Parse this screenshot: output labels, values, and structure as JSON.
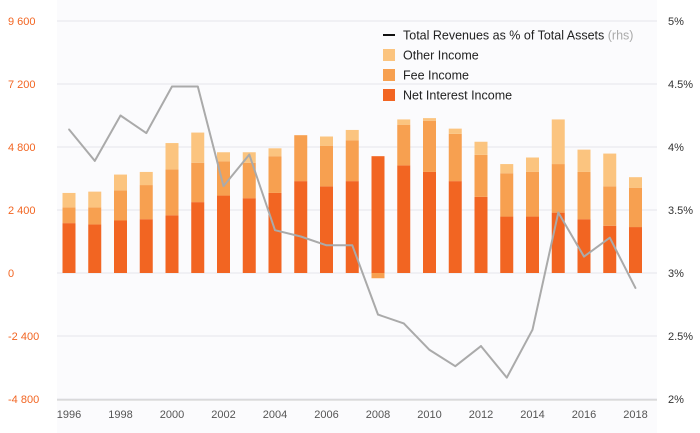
{
  "chart_data": {
    "type": "bar",
    "categories": [
      "1996",
      "1997",
      "1998",
      "1999",
      "2000",
      "2001",
      "2002",
      "2003",
      "2004",
      "2005",
      "2006",
      "2007",
      "2008",
      "2009",
      "2010",
      "2011",
      "2012",
      "2013",
      "2014",
      "2015",
      "2016",
      "2017",
      "2018"
    ],
    "x_tick_labels": [
      "1996",
      "1998",
      "2000",
      "2002",
      "2004",
      "2006",
      "2008",
      "2010",
      "2012",
      "2014",
      "2016",
      "2018"
    ],
    "series": [
      {
        "name": "Net Interest Income",
        "kind": "bar",
        "axis": "left",
        "color": "#f26522",
        "values": [
          1900,
          1850,
          2000,
          2050,
          2200,
          2700,
          2950,
          2850,
          3050,
          3500,
          3300,
          3500,
          4450,
          4100,
          3850,
          3500,
          2900,
          2150,
          2150,
          2300,
          2050,
          1800,
          1750
        ]
      },
      {
        "name": "Fee Income",
        "kind": "bar",
        "axis": "left",
        "color": "#f7a050",
        "values": [
          600,
          650,
          1150,
          1300,
          1750,
          1500,
          1300,
          1350,
          1400,
          1750,
          1550,
          1550,
          -200,
          1550,
          1950,
          1800,
          1600,
          1650,
          1700,
          1850,
          1800,
          1500,
          1500
        ]
      },
      {
        "name": "Other Income",
        "kind": "bar",
        "axis": "left",
        "color": "#fbc47f",
        "values": [
          550,
          600,
          600,
          500,
          1000,
          1150,
          350,
          400,
          300,
          0,
          350,
          400,
          0,
          200,
          100,
          200,
          500,
          350,
          550,
          1700,
          850,
          1250,
          400
        ]
      },
      {
        "name": "Total Revenues as % of Total Assets",
        "note": "(rhs)",
        "kind": "line",
        "axis": "right",
        "color": "#aaaaaa",
        "legend_color": "#111111",
        "values": [
          4.14,
          3.89,
          4.25,
          4.11,
          4.48,
          4.48,
          3.69,
          3.94,
          3.34,
          3.29,
          3.22,
          3.22,
          2.67,
          2.6,
          2.39,
          2.26,
          2.42,
          2.17,
          2.55,
          3.48,
          3.13,
          3.28,
          2.88
        ]
      }
    ],
    "left_axis": {
      "min": -4800,
      "max": 9600,
      "ticks": [
        -4800,
        -2400,
        0,
        2400,
        4800,
        7200,
        9600
      ],
      "tick_labels": [
        "-4 800",
        "-2 400",
        "0",
        "2 400",
        "4 800",
        "7 200",
        "9 600"
      ],
      "color": "#f26522"
    },
    "right_axis": {
      "min": 2,
      "max": 5,
      "ticks": [
        2,
        2.5,
        3,
        3.5,
        4,
        4.5,
        5
      ],
      "tick_labels": [
        "2%",
        "2.5%",
        "3%",
        "3.5%",
        "4%",
        "4.5%",
        "5%"
      ],
      "color": "#333333"
    },
    "stacked": true,
    "grid": true,
    "legend_position": "top-right"
  }
}
